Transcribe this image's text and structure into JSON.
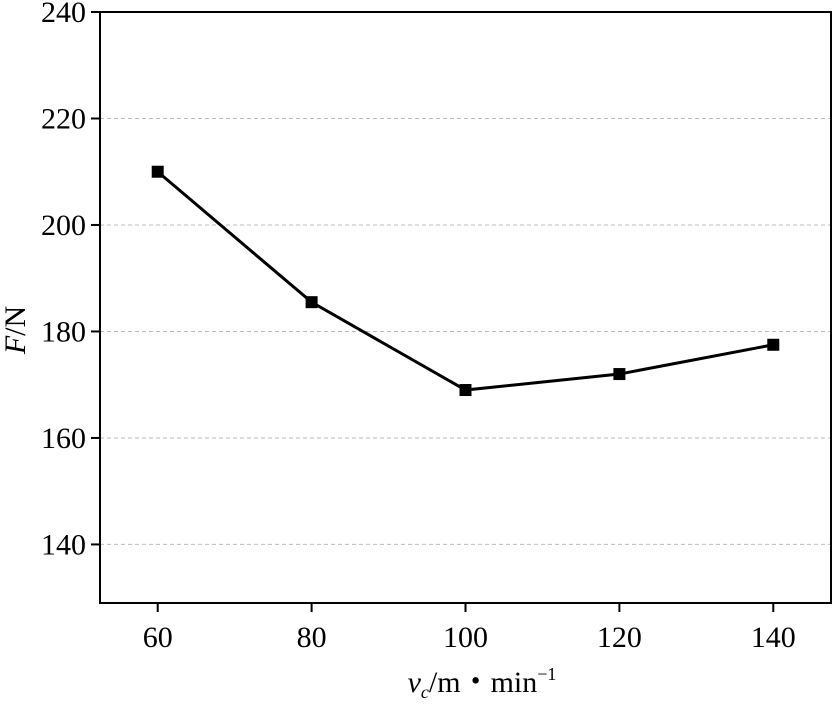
{
  "chart_data": {
    "type": "line",
    "title": "",
    "xlabel": {
      "var": "v",
      "sub": "c",
      "unit": "/m・min",
      "exp": "−1"
    },
    "ylabel": {
      "var": "F",
      "unit": "/N"
    },
    "x": [
      60,
      80,
      100,
      120,
      140
    ],
    "series": [
      {
        "values": [
          210,
          185.5,
          169,
          172,
          177.5
        ]
      }
    ],
    "xticks": [
      60,
      80,
      100,
      120,
      140
    ],
    "yticks": [
      140,
      160,
      180,
      200,
      220,
      240
    ],
    "xlim": [
      52.5,
      147.5
    ],
    "ylim": [
      129,
      240
    ],
    "grid": "horizontal-dashed",
    "legend": "none",
    "colors": {
      "line": "#000000",
      "marker": "#000000",
      "grid": "#bdbdbd"
    }
  }
}
